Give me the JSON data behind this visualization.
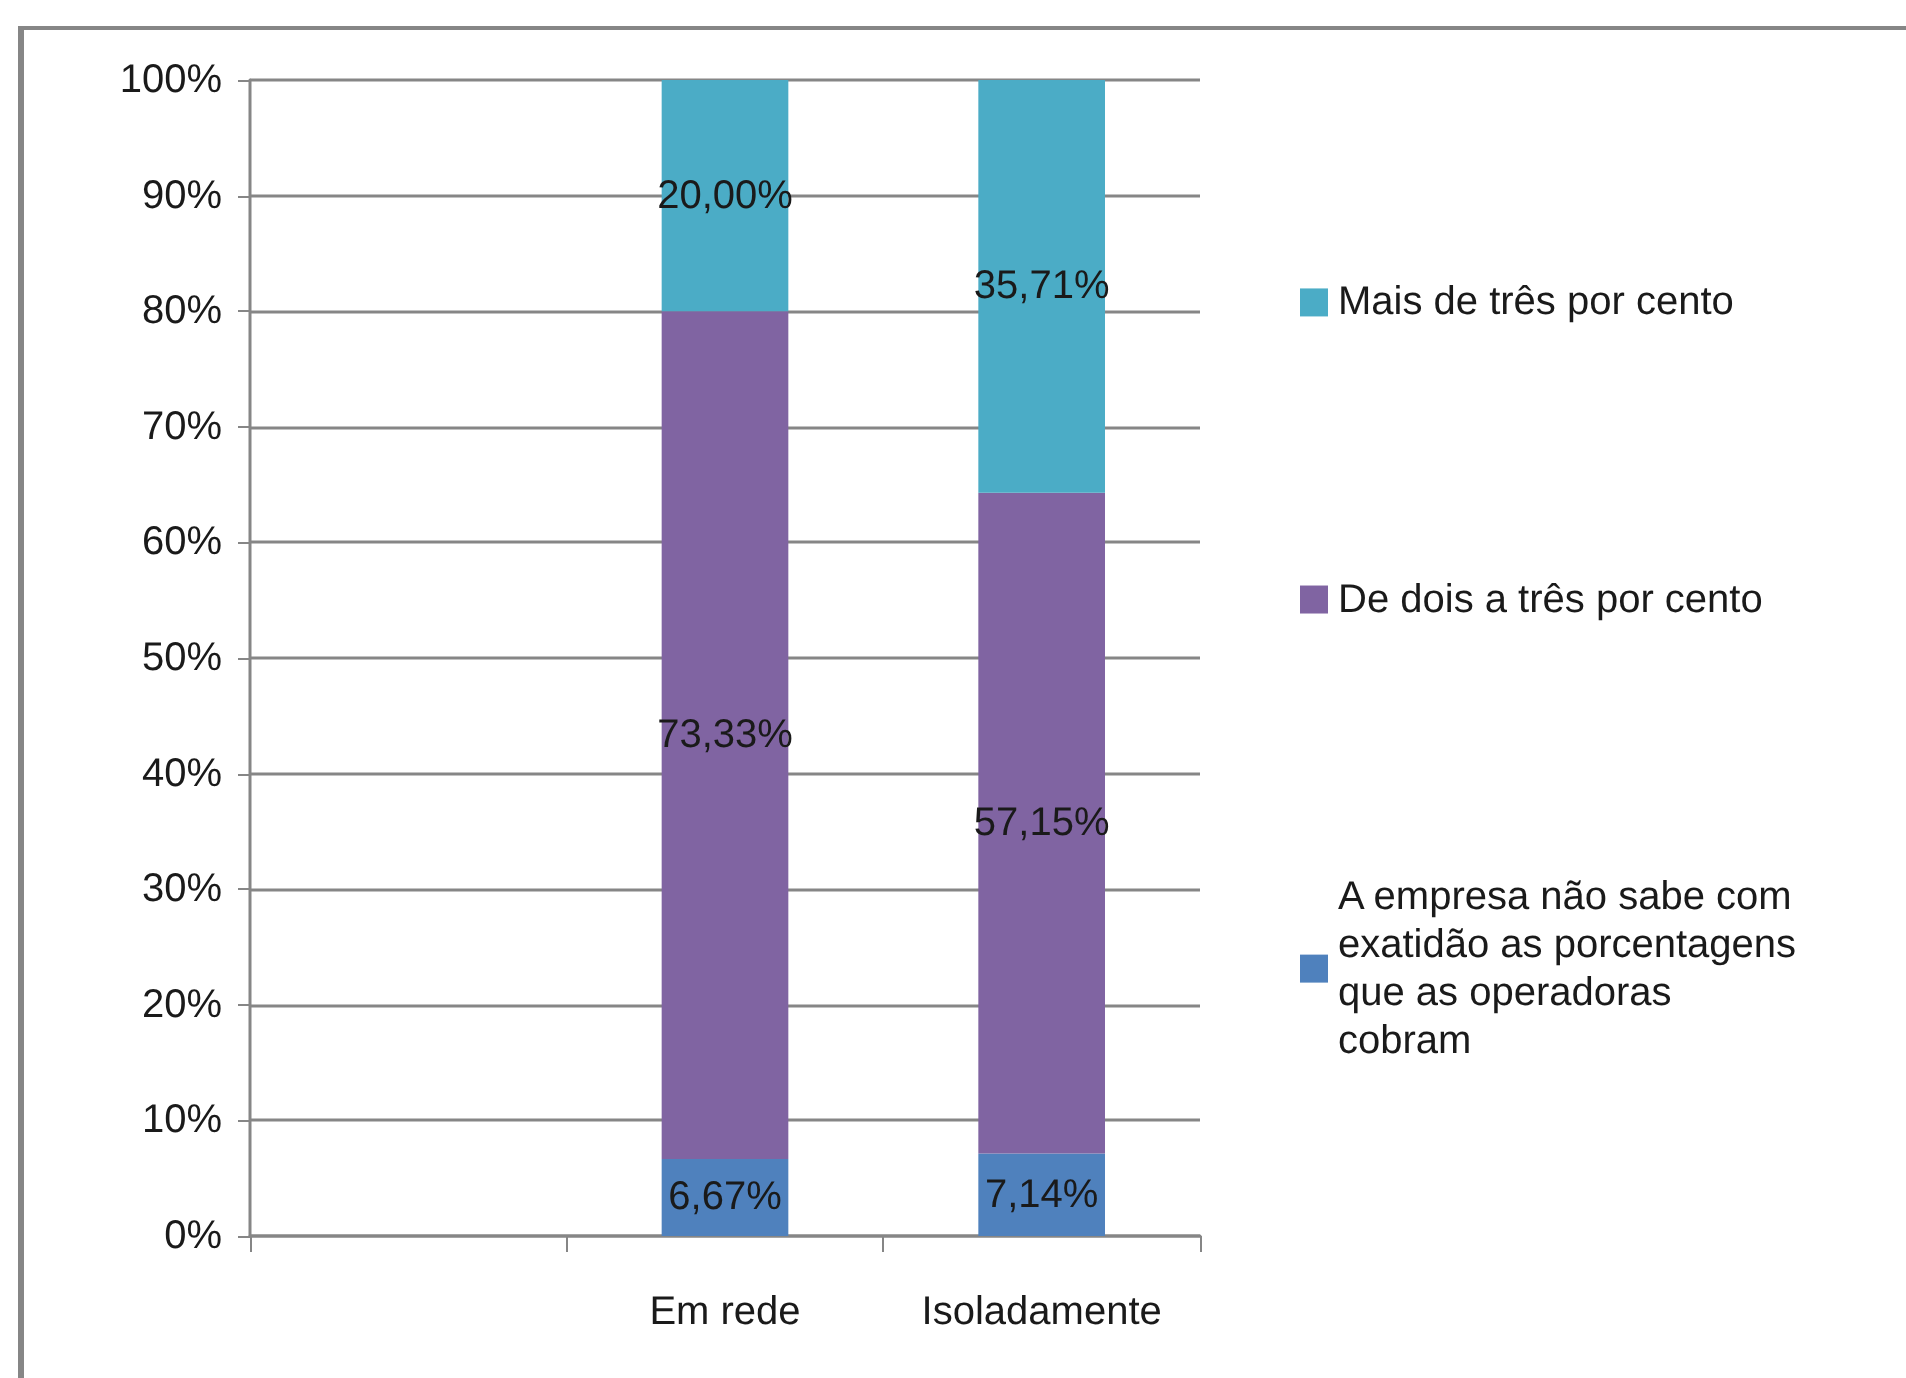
{
  "chart_data": {
    "type": "bar",
    "stacked": true,
    "categories": [
      null,
      "Em rede",
      "Isoladamente"
    ],
    "series": [
      {
        "name": "A empresa não sabe com exatidão as porcentagens que as operadoras cobram",
        "color": "#4f81bd",
        "values": [
          null,
          6.67,
          7.14
        ],
        "value_labels": [
          null,
          "6,67%",
          "7,14%"
        ]
      },
      {
        "name": "De dois a três por cento",
        "color": "#8064a2",
        "values": [
          null,
          73.33,
          57.15
        ],
        "value_labels": [
          null,
          "73,33%",
          "57,15%"
        ]
      },
      {
        "name": "Mais de três por cento",
        "color": "#4bacc6",
        "values": [
          null,
          20.0,
          35.71
        ],
        "value_labels": [
          null,
          "20,00%",
          "35,71%"
        ]
      }
    ],
    "ylim": [
      0,
      100
    ],
    "yticks": [
      {
        "value": 0,
        "label": "0%"
      },
      {
        "value": 10,
        "label": "10%"
      },
      {
        "value": 20,
        "label": "20%"
      },
      {
        "value": 30,
        "label": "30%"
      },
      {
        "value": 40,
        "label": "40%"
      },
      {
        "value": 50,
        "label": "50%"
      },
      {
        "value": 60,
        "label": "60%"
      },
      {
        "value": 70,
        "label": "70%"
      },
      {
        "value": 80,
        "label": "80%"
      },
      {
        "value": 90,
        "label": "90%"
      },
      {
        "value": 100,
        "label": "100%"
      }
    ],
    "grid": "y",
    "legend": "right"
  }
}
